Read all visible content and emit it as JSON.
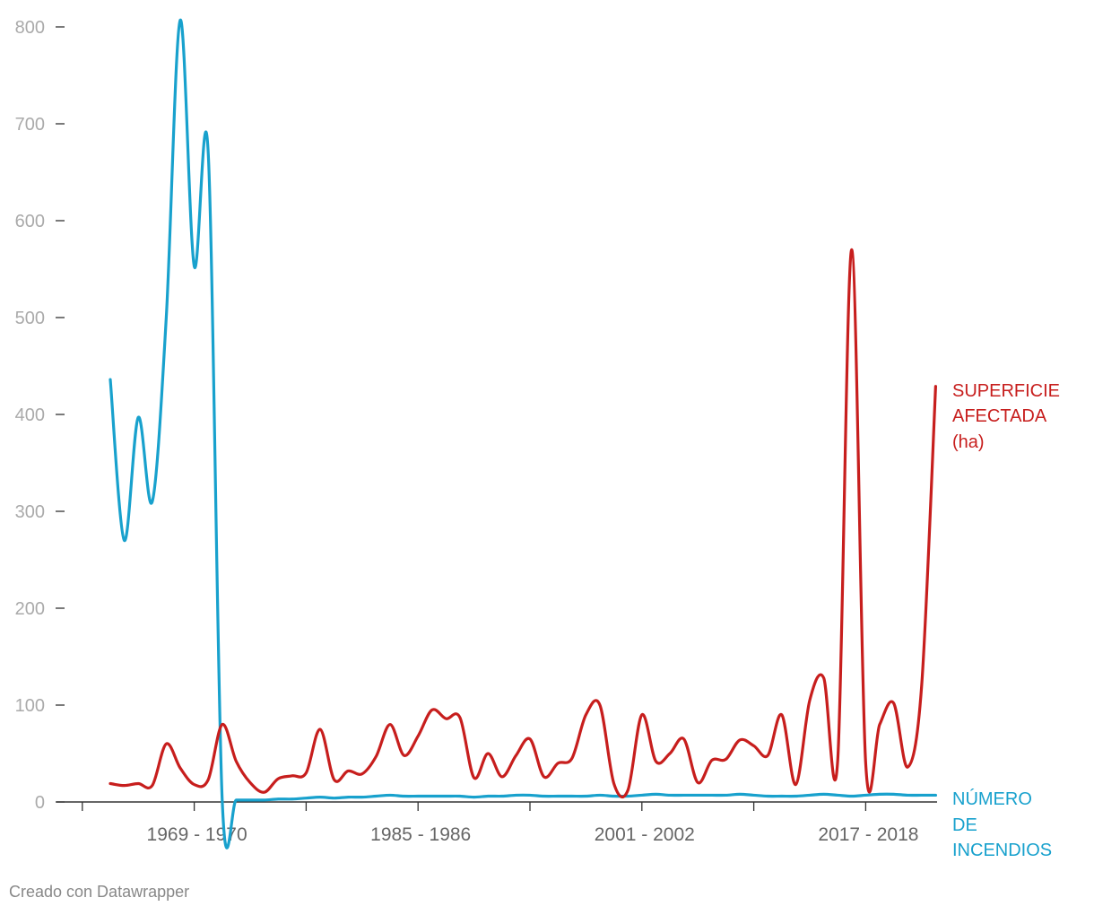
{
  "chart_data": {
    "type": "line",
    "title": "",
    "xlabel": "",
    "ylabel": "",
    "ylim": [
      0,
      800
    ],
    "yticks": [
      0,
      100,
      200,
      300,
      400,
      500,
      600,
      700,
      800
    ],
    "ytick_labels": [
      "0",
      "100",
      "200",
      "300",
      "400",
      "500",
      "600",
      "700",
      "800"
    ],
    "x_tick_labels": [
      "1969 - 1970",
      "1985 - 1986",
      "2001 - 2002",
      "2017 - 2018"
    ],
    "x_tick_label_index": [
      6,
      22,
      38,
      54
    ],
    "x": [
      "1963 - 1964",
      "1964 - 1965",
      "1965 - 1966",
      "1966 - 1967",
      "1967 - 1968",
      "1968 - 1969",
      "1969 - 1970",
      "1970 - 1971",
      "1971 - 1972",
      "1972 - 1973",
      "1973 - 1974",
      "1974 - 1975",
      "1975 - 1976",
      "1976 - 1977",
      "1977 - 1978",
      "1978 - 1979",
      "1979 - 1980",
      "1980 - 1981",
      "1981 - 1982",
      "1982 - 1983",
      "1983 - 1984",
      "1984 - 1985",
      "1985 - 1986",
      "1986 - 1987",
      "1987 - 1988",
      "1988 - 1989",
      "1989 - 1990",
      "1990 - 1991",
      "1991 - 1992",
      "1992 - 1993",
      "1993 - 1994",
      "1994 - 1995",
      "1995 - 1996",
      "1996 - 1997",
      "1997 - 1998",
      "1998 - 1999",
      "1999 - 2000",
      "2000 - 2001",
      "2001 - 2002",
      "2002 - 2003",
      "2003 - 2004",
      "2004 - 2005",
      "2005 - 2006",
      "2006 - 2007",
      "2007 - 2008",
      "2008 - 2009",
      "2009 - 2010",
      "2010 - 2011",
      "2011 - 2012",
      "2012 - 2013",
      "2013 - 2014",
      "2014 - 2015",
      "2015 - 2016",
      "2016 - 2017",
      "2017 - 2018",
      "2018 - 2019",
      "2019 - 2020",
      "2020 - 2021",
      "2021 - 2022",
      "2022 - 2023"
    ],
    "series": [
      {
        "name": "SUPERFICIE AFECTADA (ha)",
        "label_lines": [
          "SUPERFICIE",
          "AFECTADA",
          "(ha)"
        ],
        "color": "#c71e1d",
        "values": [
          19,
          17,
          19,
          17,
          60,
          35,
          18,
          23,
          80,
          42,
          20,
          10,
          24,
          27,
          30,
          75,
          23,
          32,
          29,
          47,
          80,
          48,
          68,
          95,
          86,
          87,
          25,
          50,
          26,
          48,
          65,
          26,
          40,
          45,
          90,
          100,
          19,
          12,
          90,
          42,
          50,
          65,
          20,
          43,
          44,
          64,
          58,
          48,
          90,
          18,
          105,
          128,
          43,
          570,
          40,
          80,
          102,
          36,
          120,
          429
        ]
      },
      {
        "name": "NÚMERO DE INCENDIOS",
        "label_lines": [
          "NÚMERO",
          "DE",
          "INCENDIOS"
        ],
        "color": "#18a1cd",
        "values": [
          436,
          270,
          397,
          310,
          500,
          807,
          553,
          670,
          2,
          2,
          2,
          2,
          3,
          3,
          4,
          5,
          4,
          5,
          5,
          6,
          7,
          6,
          6,
          6,
          6,
          6,
          5,
          6,
          6,
          7,
          7,
          6,
          6,
          6,
          6,
          7,
          6,
          6,
          7,
          8,
          7,
          7,
          7,
          7,
          7,
          8,
          7,
          6,
          6,
          6,
          7,
          8,
          7,
          6,
          7,
          8,
          8,
          7,
          7,
          7
        ]
      }
    ]
  },
  "credit": "Creado con Datawrapper"
}
